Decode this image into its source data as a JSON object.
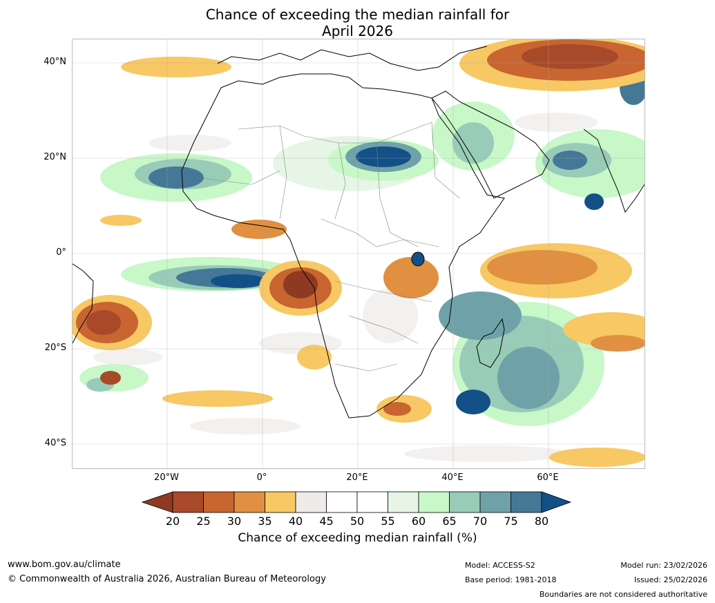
{
  "title_line1": "Chance of exceeding the median rainfall for",
  "title_line2": "April 2026",
  "map": {
    "lat_labels": [
      "40°N",
      "20°N",
      "0°",
      "20°S",
      "40°S"
    ],
    "lon_labels": [
      "20°W",
      "0°",
      "20°E",
      "40°E",
      "60°E"
    ],
    "lat_range": [
      -45,
      45
    ],
    "lon_range": [
      -40,
      80
    ]
  },
  "legend": {
    "ticks": [
      "20",
      "25",
      "30",
      "35",
      "40",
      "45",
      "50",
      "55",
      "60",
      "65",
      "70",
      "75",
      "80"
    ],
    "label": "Chance of exceeding median rainfall (%)",
    "colors": [
      "#8e3a22",
      "#a8492a",
      "#c86530",
      "#e09040",
      "#f7c864",
      "#eeebe8",
      "#ffffff",
      "#ffffff",
      "#e6f5e6",
      "#c8f7c8",
      "#98ccb8",
      "#6ea2a8",
      "#457896",
      "#135088"
    ]
  },
  "footer": {
    "website": "www.bom.gov.au/climate",
    "copyright": "© Commonwealth of Australia 2026, Australian Bureau of Meteorology",
    "model": "Model: ACCESS-S2",
    "base_period": "Base period: 1981-2018",
    "model_run": "Model run: 23/02/2026",
    "issued": "Issued: 25/02/2026",
    "disclaimer": "Boundaries are not considered authoritative"
  }
}
